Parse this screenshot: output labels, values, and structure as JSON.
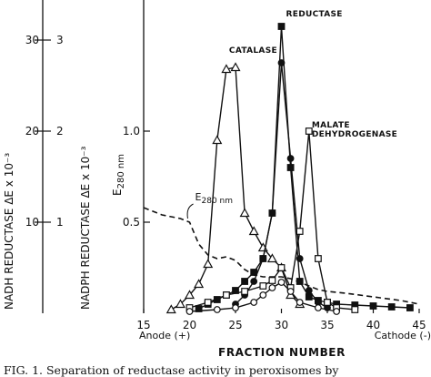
{
  "chart_data": {
    "type": "line",
    "x_axis": {
      "label": "FRACTION NUMBER",
      "range": [
        15,
        45
      ],
      "ticks": [
        15,
        20,
        25,
        30,
        35,
        40,
        45
      ],
      "tick_labels": [
        "15",
        "20",
        "25",
        "30",
        "35",
        "40",
        "45"
      ],
      "end_labels": {
        "left": "Anode (+)",
        "right": "Cathode (-)"
      }
    },
    "y_axes": [
      {
        "label": "NADH REDUCTASE  ΔE x 10⁻³",
        "range": [
          0,
          34
        ],
        "ticks": [
          10,
          20,
          30
        ],
        "tick_labels": [
          "10",
          "20",
          "30"
        ]
      },
      {
        "label": "NADPH REDUCTASE  ΔE x 10⁻³",
        "range": [
          0,
          3.4
        ],
        "ticks": [
          1,
          2,
          3
        ],
        "tick_labels": [
          "1",
          "2",
          "3"
        ]
      },
      {
        "label": "E",
        "label_sub": "280 nm",
        "range": [
          0,
          1.7
        ],
        "ticks": [
          0.5,
          1.0
        ],
        "tick_labels": [
          "0.5",
          "1.0"
        ]
      }
    ],
    "series": [
      {
        "name": "E280 nm",
        "label_main": "E",
        "label_sub": "280 nm",
        "axis": 2,
        "marker": "none",
        "dashed": true,
        "x": [
          15,
          16,
          17,
          18,
          19,
          20,
          21,
          22,
          23,
          24,
          25,
          26,
          27,
          28,
          29,
          30,
          31,
          32,
          33,
          34,
          35,
          37,
          40,
          43,
          45
        ],
        "y": [
          0.58,
          0.56,
          0.54,
          0.53,
          0.52,
          0.5,
          0.38,
          0.32,
          0.3,
          0.31,
          0.29,
          0.24,
          0.21,
          0.2,
          0.2,
          0.2,
          0.19,
          0.17,
          0.15,
          0.13,
          0.12,
          0.11,
          0.09,
          0.07,
          0.05
        ]
      },
      {
        "name": "CATALASE",
        "axis": 2,
        "marker": "triangle",
        "x": [
          18,
          19,
          20,
          21,
          22,
          23,
          24,
          25,
          26,
          27,
          28,
          29,
          30,
          31,
          32
        ],
        "y": [
          0.02,
          0.05,
          0.1,
          0.16,
          0.27,
          0.95,
          1.34,
          1.35,
          0.55,
          0.45,
          0.36,
          0.3,
          0.25,
          0.1,
          0.05
        ]
      },
      {
        "name": "REDUCTASE",
        "axis": 0,
        "marker": "square-filled",
        "x": [
          21,
          22,
          23,
          24,
          25,
          26,
          27,
          28,
          29,
          30,
          31,
          32,
          33,
          34,
          35,
          36,
          38,
          40,
          42,
          44
        ],
        "y": [
          0.5,
          1.0,
          1.5,
          2.0,
          2.5,
          3.5,
          4.5,
          6.0,
          11.0,
          31.5,
          16.0,
          3.5,
          1.8,
          1.4,
          1.2,
          1.0,
          0.9,
          0.8,
          0.7,
          0.6
        ]
      },
      {
        "name": "NADPH REDUCTASE",
        "axis": 1,
        "marker": "circle-filled",
        "x": [
          25,
          26,
          27,
          28,
          29,
          30,
          31,
          32,
          33,
          34,
          35
        ],
        "y": [
          0.1,
          0.2,
          0.35,
          0.6,
          1.1,
          2.75,
          1.7,
          0.6,
          0.25,
          0.12,
          0.06
        ]
      },
      {
        "name": "MALATE DEHYDROGENASE",
        "axis": 2,
        "marker": "square-open",
        "x": [
          20,
          22,
          24,
          26,
          28,
          29,
          30,
          31,
          32,
          33,
          34,
          35,
          36,
          38
        ],
        "y": [
          0.03,
          0.06,
          0.1,
          0.12,
          0.15,
          0.18,
          0.25,
          0.14,
          0.45,
          1.0,
          0.3,
          0.06,
          0.03,
          0.02
        ]
      },
      {
        "name": "circles",
        "axis": 2,
        "marker": "circle-open",
        "x": [
          20,
          23,
          25,
          27,
          28,
          29,
          30,
          31,
          32,
          34,
          36
        ],
        "y": [
          0.01,
          0.02,
          0.03,
          0.06,
          0.1,
          0.14,
          0.17,
          0.12,
          0.06,
          0.03,
          0.01
        ]
      }
    ],
    "annotations": [
      {
        "text": "CATALASE",
        "x": 24.3,
        "y": 1.43
      },
      {
        "text": "REDUCTASE",
        "x": 30.5,
        "y": 1.63
      },
      {
        "text": "MALATE",
        "x": 33.3,
        "y": 1.02
      },
      {
        "text": "DEHYDROGENASE",
        "x": 33.3,
        "y": 0.97
      }
    ]
  },
  "caption": "FIG. 1. Separation of reductase activity in peroxisomes by"
}
